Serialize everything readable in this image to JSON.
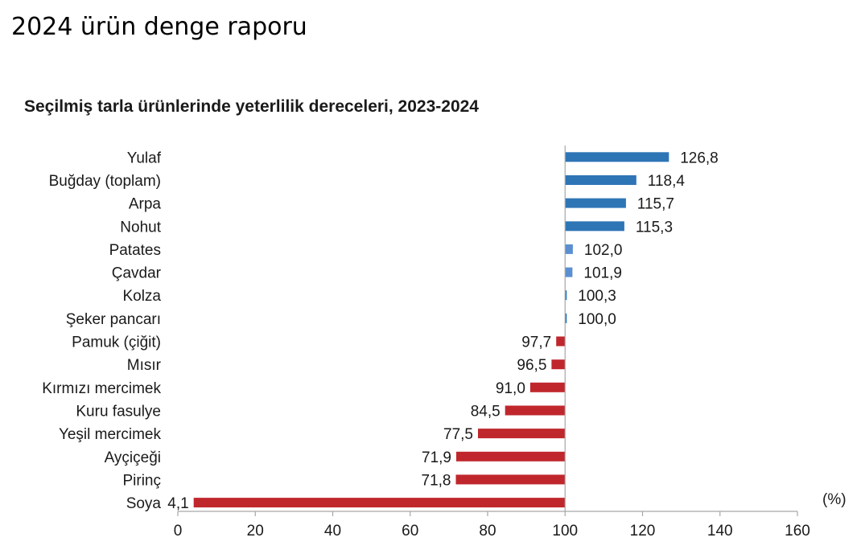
{
  "page": {
    "title": "2024 ürün denge raporu"
  },
  "chart_data": {
    "type": "bar",
    "orientation": "horizontal",
    "title": "Seçilmiş tarla ürünlerinde yeterlilik dereceleri, 2023-2024",
    "unit_label": "(%)",
    "baseline": 100,
    "xlim": [
      0,
      160
    ],
    "x_ticks": [
      0,
      20,
      40,
      60,
      80,
      100,
      120,
      140,
      160
    ],
    "grid": false,
    "categories": [
      "Yulaf",
      "Buğday (toplam)",
      "Arpa",
      "Nohut",
      "Patates",
      "Çavdar",
      "Kolza",
      "Şeker pancarı",
      "Pamuk (çiğit)",
      "Mısır",
      "Kırmızı mercimek",
      "Kuru fasulye",
      "Yeşil mercimek",
      "Ayçiçeği",
      "Pirinç",
      "Soya"
    ],
    "values": [
      126.8,
      118.4,
      115.7,
      115.3,
      102.0,
      101.9,
      100.3,
      100.0,
      97.7,
      96.5,
      91.0,
      84.5,
      77.5,
      71.9,
      71.8,
      4.1
    ],
    "value_labels": [
      "126,8",
      "118,4",
      "115,7",
      "115,3",
      "102,0",
      "101,9",
      "100,3",
      "100,0",
      "97,7",
      "96,5",
      "91,0",
      "84,5",
      "77,5",
      "71,9",
      "71,8",
      "4,1"
    ],
    "colors": {
      "above": "#2e75b6",
      "above_light": "#5b8fd0",
      "below": "#c0272d"
    }
  }
}
